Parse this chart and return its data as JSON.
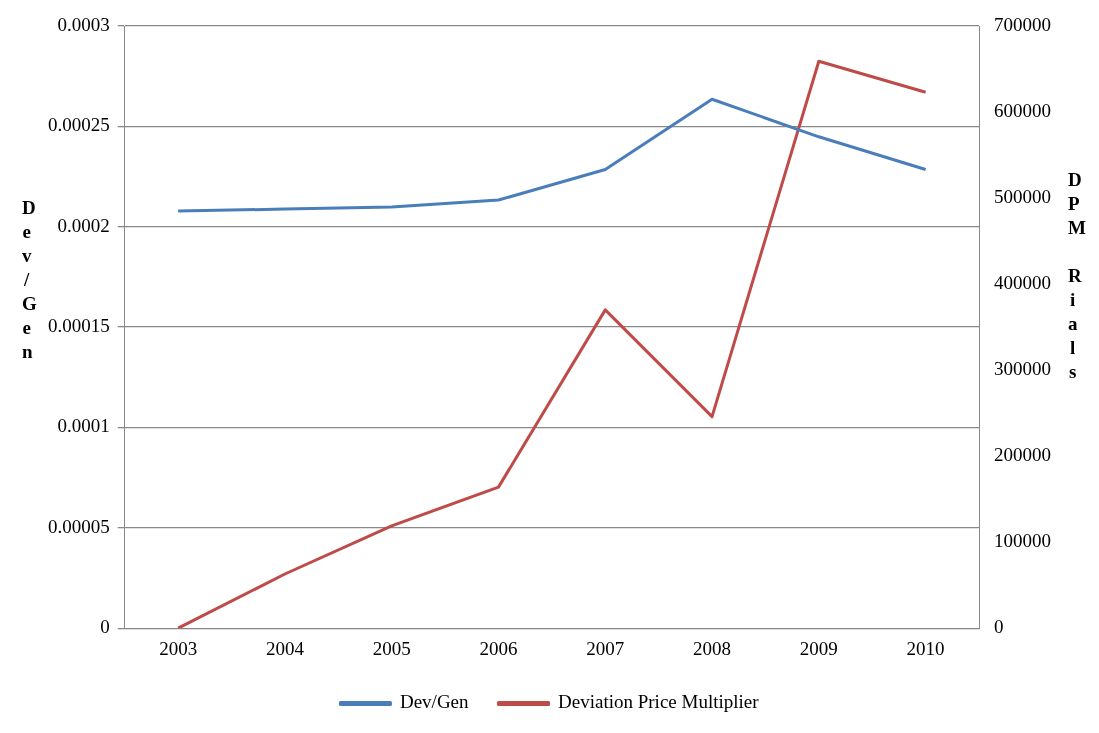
{
  "chart_data": {
    "type": "line",
    "categories": [
      "2003",
      "2004",
      "2005",
      "2006",
      "2007",
      "2008",
      "2009",
      "2010"
    ],
    "series": [
      {
        "name": "Dev/Gen",
        "color": "#4a7ebb",
        "values": [
          0.0002078,
          0.0002088,
          0.0002098,
          0.0002133,
          0.0002285,
          0.0002635,
          0.0002448,
          0.0002285
        ]
      },
      {
        "name": "Deviation Price Multiplier",
        "color": "#be4b48",
        "axis": "y2",
        "values": [
          0,
          63000,
          119000,
          164000,
          370000,
          246000,
          659000,
          623000
        ]
      }
    ],
    "ylabel": "Dev/Gen",
    "y2label": "DPM Rials",
    "ylim": [
      0,
      0.0003
    ],
    "yticks": [
      0,
      {
        "value": 5e-05,
        "label": "0.00005"
      },
      0.0001,
      0.00015,
      0.0002,
      0.00025,
      0.0003
    ],
    "y2lim": [
      0,
      700000
    ],
    "y2ticks": [
      0,
      100000,
      200000,
      300000,
      400000,
      500000,
      600000,
      700000
    ],
    "grid": "y",
    "legend": "bottom",
    "marker": "none",
    "line_style": "solid"
  }
}
